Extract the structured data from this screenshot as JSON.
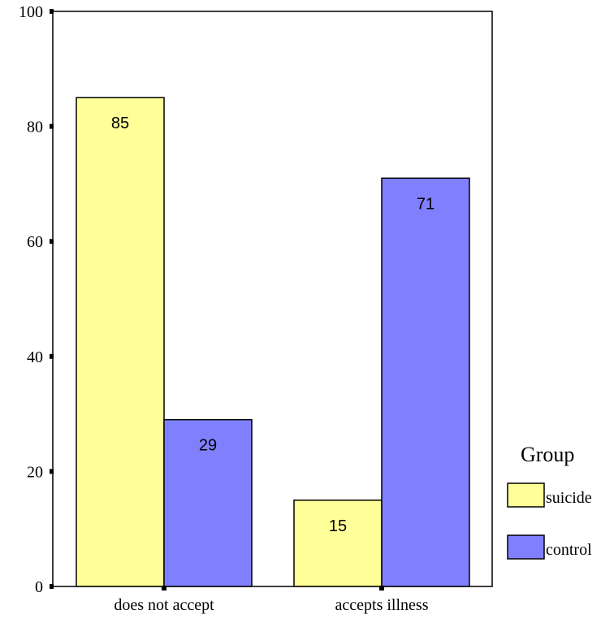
{
  "chart_data": {
    "type": "bar",
    "categories": [
      "does not accept",
      "accepts illness"
    ],
    "series": [
      {
        "name": "suicide",
        "values": [
          85,
          15
        ],
        "color": "#FFFF99"
      },
      {
        "name": "control",
        "values": [
          29,
          71
        ],
        "color": "#8080FF"
      }
    ],
    "data_labels": [
      [
        "85",
        "15"
      ],
      [
        "29",
        "71"
      ]
    ],
    "ylim": [
      0,
      100
    ],
    "yticks": [
      0,
      20,
      40,
      60,
      80,
      100
    ],
    "xlabel": "",
    "ylabel": "",
    "grid": false,
    "legend": {
      "title": "Group",
      "placement": "right"
    }
  }
}
